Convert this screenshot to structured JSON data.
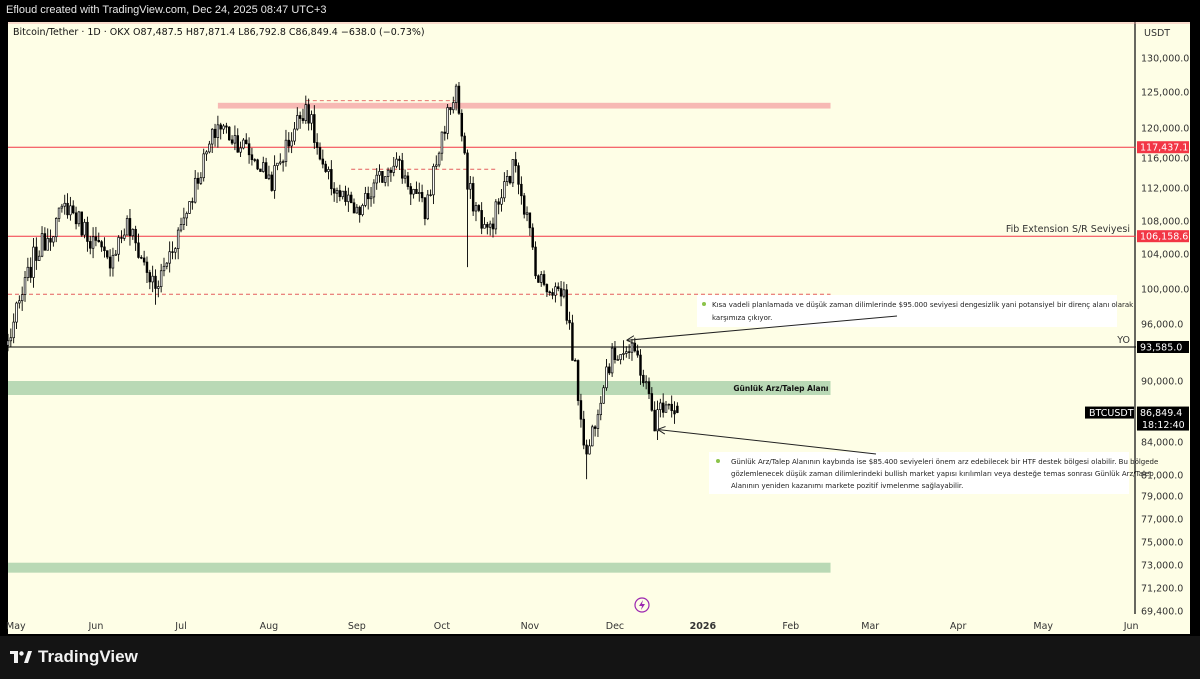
{
  "header": {
    "caption": "Efloud created with TradingView.com, Dec 24, 2025 08:47 UTC+3"
  },
  "footer": {
    "brand": "TradingView"
  },
  "chart_data": {
    "type": "candlestick",
    "symbol_line": "Bitcoin/Tether · 1D · OKX",
    "ohlc": {
      "open": "O87,487.5",
      "high": "H87,871.4",
      "low": "L86,792.8",
      "close": "C86,849.4",
      "change": "−638.0 (−0.73%)"
    },
    "y_axis": {
      "unit_label": "USDT",
      "ticks": [
        130000,
        125000,
        120000,
        116000,
        112000,
        108000,
        104000,
        100000,
        96000,
        93585,
        90000,
        87000,
        84000,
        81000,
        79000,
        77000,
        75000,
        73000,
        71200,
        69400
      ],
      "tick_labels": [
        "130,000.0",
        "125,000.0",
        "120,000.0",
        "116,000.0",
        "112,000.0",
        "108,000.0",
        "104,000.0",
        "100,000.0",
        "96,000.0",
        "",
        "90,000.0",
        "87,000.0",
        "84,000.0",
        "81,000.0",
        "79,000.0",
        "77,000.0",
        "75,000.0",
        "73,000.0",
        "71,200.0",
        "69,400.0"
      ]
    },
    "x_axis": {
      "labels": [
        "May",
        "Jun",
        "Jul",
        "Aug",
        "Sep",
        "Oct",
        "Nov",
        "Dec",
        "2026",
        "Feb",
        "Mar",
        "Apr",
        "May",
        "Jun"
      ],
      "dates": [
        "2025-05-01",
        "2025-06-01",
        "2025-07-01",
        "2025-08-01",
        "2025-09-01",
        "2025-10-01",
        "2025-11-01",
        "2025-12-01",
        "2026-01-01",
        "2026-02-01",
        "2026-03-01",
        "2026-04-01",
        "2026-05-01",
        "2026-06-01"
      ]
    },
    "anchors": [
      [
        "2025-05-01",
        94000
      ],
      [
        "2025-05-10",
        103500
      ],
      [
        "2025-05-22",
        110000
      ],
      [
        "2025-06-05",
        103000
      ],
      [
        "2025-06-12",
        107500
      ],
      [
        "2025-06-22",
        99800
      ],
      [
        "2025-07-01",
        107500
      ],
      [
        "2025-07-10",
        116500
      ],
      [
        "2025-07-14",
        120500
      ],
      [
        "2025-07-22",
        118000
      ],
      [
        "2025-08-02",
        113000
      ],
      [
        "2025-08-14",
        123500
      ],
      [
        "2025-08-20",
        114000
      ],
      [
        "2025-09-01",
        108500
      ],
      [
        "2025-09-14",
        116000
      ],
      [
        "2025-09-25",
        109000
      ],
      [
        "2025-10-02",
        120500
      ],
      [
        "2025-10-06",
        125500
      ],
      [
        "2025-10-10",
        112000
      ],
      [
        "2025-10-17",
        106500
      ],
      [
        "2025-10-27",
        115500
      ],
      [
        "2025-11-04",
        101000
      ],
      [
        "2025-11-13",
        99500
      ],
      [
        "2025-11-21",
        82500
      ],
      [
        "2025-11-28",
        91500
      ],
      [
        "2025-12-03",
        93500
      ],
      [
        "2025-12-09",
        92500
      ],
      [
        "2025-12-15",
        86000
      ],
      [
        "2025-12-19",
        88500
      ],
      [
        "2025-12-23",
        86849.4
      ]
    ],
    "spikes": [
      {
        "date": "2025-06-22",
        "low": 98200
      },
      {
        "date": "2025-08-14",
        "high": 124500
      },
      {
        "date": "2025-10-06",
        "high": 126200
      },
      {
        "date": "2025-10-10",
        "low": 102500
      },
      {
        "date": "2025-11-21",
        "low": 80600
      },
      {
        "date": "2025-12-04",
        "high": 94300
      }
    ],
    "levels": [
      {
        "price": 117437.1,
        "label": "117,437.1",
        "color": "#f23645",
        "text": ""
      },
      {
        "price": 106158.6,
        "label": "106,158.6",
        "color": "#f23645",
        "text": "Fib Extension S/R Seviyesi"
      },
      {
        "price": 93585.0,
        "label": "93,585.0",
        "color": "#000000",
        "text": "YO"
      }
    ],
    "zones": [
      {
        "from": "2025-07-14",
        "to": "2026-02-15",
        "low": 122700,
        "high": 123500,
        "color": "#f7b9b4",
        "label": ""
      },
      {
        "from": "2025-05-01",
        "to": "2026-02-15",
        "low": 88600,
        "high": 90000,
        "color": "#b9d9b5",
        "label": "Günlük Arz/Talep Alanı"
      },
      {
        "from": "2025-05-01",
        "to": "2026-02-15",
        "low": 72400,
        "high": 73200,
        "color": "#b9d9b5",
        "label": ""
      }
    ],
    "dashed_levels": [
      {
        "price": 123800,
        "from": "2025-08-14",
        "to": "2025-10-06",
        "color": "#e35d5d"
      },
      {
        "price": 114500,
        "from": "2025-08-30",
        "to": "2025-10-20",
        "color": "#e35d5d"
      },
      {
        "price": 99400,
        "from": "2025-05-01",
        "to": "2026-02-15",
        "color": "#e35d5d"
      }
    ],
    "current_price": {
      "symbol": "BTCUSDT",
      "price": "86,849.4",
      "countdown": "18:12:40",
      "value": 86849.4
    },
    "notes": [
      {
        "lines": [
          "Kısa vadeli planlamada ve düşük zaman dilimlerinde $95.000 seviyesi dengesizlik yani potansiyel bir direnç alanı olarak",
          "karşımıza çıkıyor."
        ]
      },
      {
        "lines": [
          "Günlük Arz/Talep Alanının kaybında ise $85.400 seviyeleri önem arz edebilecek bir HTF destek bölgesi olabilir. Bu bölgede",
          "gözlemlenecek düşük zaman dilimlerindeki bullish market yapısı kırılımları veya desteğe temas sonrası Günlük Arz/Talep",
          "Alanının yeniden kazanımı markete pozitif ivmelenme sağlayabilir."
        ]
      }
    ],
    "arrows": [
      {
        "to_date": "2025-12-04",
        "to_price": 94400
      },
      {
        "to_date": "2025-12-15",
        "to_price": 85300
      }
    ]
  }
}
